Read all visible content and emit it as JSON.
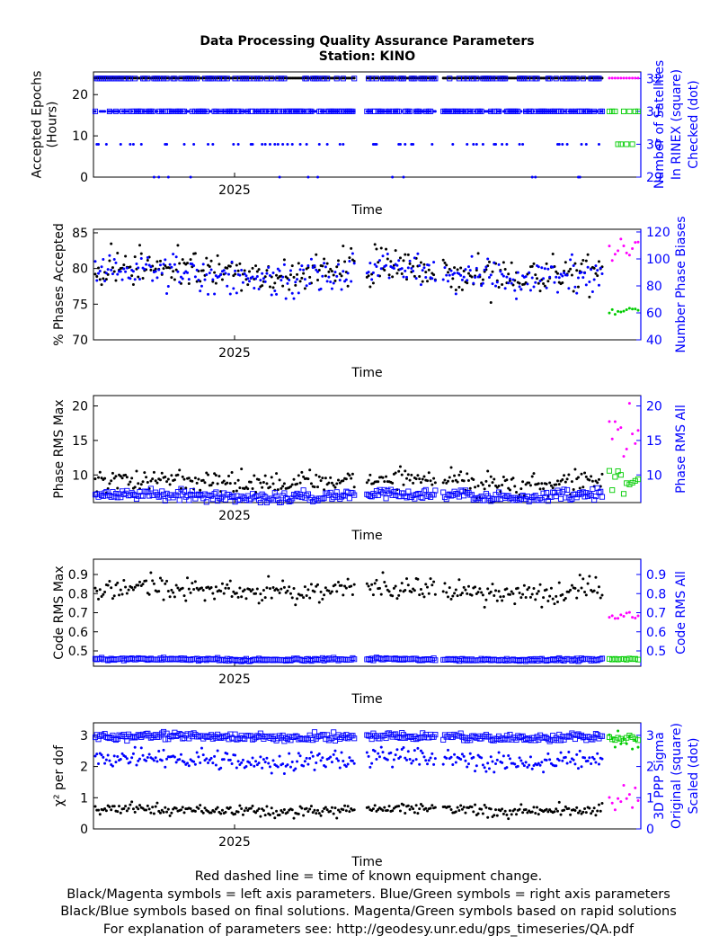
{
  "header": {
    "title_line1": "Data Processing Quality Assurance Parameters",
    "title_line2": "Station: KINO"
  },
  "footer": {
    "line1": "Red dashed line = time of known equipment change.",
    "line2": "Black/Magenta symbols = left axis parameters. Blue/Green symbols = right axis parameters",
    "line3": "Black/Blue symbols based on final solutions.  Magenta/Green symbols based on rapid solutions",
    "line4": "For explanation of parameters see: http://geodesy.unr.edu/gps_timeseries/QA.pdf"
  },
  "colors": {
    "final_left": "#000000",
    "final_right": "#0000ff",
    "rapid_left": "#ff00ff",
    "rapid_right": "#00cc00",
    "right_axis": "#0000ff"
  },
  "chart_data": [
    {
      "type": "scatter",
      "xlabel": "Time",
      "x_tick_labels": [
        "2025"
      ],
      "ylabel_left": [
        "Accepted Epochs",
        "(Hours)"
      ],
      "ylabel_right": [
        "Number of Satellites",
        "In RINEX (square)",
        "Checked (dot)"
      ],
      "ylim_left": [
        0,
        25.5
      ],
      "ylim_right": [
        29,
        32.2
      ],
      "yticks_left": [
        "0",
        "10",
        "20"
      ],
      "yticks_right": [
        "29",
        "30",
        "31",
        "32"
      ],
      "series": [
        {
          "role": "final_left",
          "marker": "dot",
          "pattern": "constant",
          "level": 24
        },
        {
          "role": "final_right",
          "marker": "square",
          "pattern": "mode",
          "levels": [
            31,
            32
          ],
          "weights": [
            0.6,
            0.4
          ]
        },
        {
          "role": "final_right",
          "marker": "dot",
          "pattern": "mode",
          "levels": [
            31,
            30,
            29
          ],
          "weights": [
            0.8,
            0.15,
            0.05
          ]
        },
        {
          "role": "rapid_left",
          "marker": "dot",
          "pattern": "constant",
          "level": 24
        },
        {
          "role": "rapid_right",
          "marker": "square",
          "pattern": "mode",
          "levels": [
            31,
            30
          ],
          "weights": [
            0.7,
            0.3
          ]
        }
      ]
    },
    {
      "type": "scatter",
      "xlabel": "Time",
      "x_tick_labels": [
        "2025"
      ],
      "ylabel_left": [
        "% Phases Accepted"
      ],
      "ylabel_right": [
        "Number Phase Biases"
      ],
      "ylim_left": [
        70,
        85.5
      ],
      "ylim_right": [
        40,
        122
      ],
      "yticks_left": [
        "70",
        "75",
        "80",
        "85"
      ],
      "yticks_right": [
        "40",
        "60",
        "80",
        "100",
        "120"
      ],
      "series": [
        {
          "role": "final_left",
          "marker": "dot",
          "mean": 79.5,
          "spread": 2.2
        },
        {
          "role": "final_right",
          "marker": "dot",
          "mean": 88,
          "spread": 11
        },
        {
          "role": "rapid_left",
          "marker": "dot",
          "mean": 83,
          "spread": 1.2
        },
        {
          "role": "rapid_right",
          "marker": "dot",
          "mean": 62,
          "spread": 3
        }
      ]
    },
    {
      "type": "scatter",
      "xlabel": "Time",
      "x_tick_labels": [
        "2025"
      ],
      "ylabel_left": [
        "Phase RMS Max"
      ],
      "ylabel_right": [
        "Phase RMS All"
      ],
      "ylim_left": [
        6,
        21.5
      ],
      "ylim_right": [
        6,
        21.5
      ],
      "yticks_left": [
        "10",
        "15",
        "20"
      ],
      "yticks_right": [
        "10",
        "15",
        "20"
      ],
      "series": [
        {
          "role": "final_left",
          "marker": "dot",
          "mean": 9,
          "spread": 1.3
        },
        {
          "role": "final_right",
          "marker": "square",
          "mean": 7,
          "spread": 0.7
        },
        {
          "role": "rapid_left",
          "marker": "dot",
          "mean": 16,
          "spread": 3
        },
        {
          "role": "rapid_right",
          "marker": "square",
          "mean": 9,
          "spread": 1.5
        }
      ]
    },
    {
      "type": "scatter",
      "xlabel": "Time",
      "x_tick_labels": [
        "2025"
      ],
      "ylabel_left": [
        "Code RMS Max"
      ],
      "ylabel_right": [
        "Code RMS All"
      ],
      "ylim_left": [
        0.42,
        0.98
      ],
      "ylim_right": [
        0.42,
        0.98
      ],
      "yticks_left": [
        "0.5",
        "0.6",
        "0.7",
        "0.8",
        "0.9"
      ],
      "yticks_right": [
        "0.5",
        "0.6",
        "0.7",
        "0.8",
        "0.9"
      ],
      "series": [
        {
          "role": "final_left",
          "marker": "dot",
          "mean": 0.82,
          "spread": 0.05
        },
        {
          "role": "final_right",
          "marker": "square",
          "mean": 0.455,
          "spread": 0.006
        },
        {
          "role": "rapid_left",
          "marker": "dot",
          "mean": 0.68,
          "spread": 0.02
        },
        {
          "role": "rapid_right",
          "marker": "square",
          "mean": 0.455,
          "spread": 0.005
        }
      ]
    },
    {
      "type": "scatter",
      "xlabel": "Time",
      "x_tick_labels": [
        "2025"
      ],
      "ylabel_left": [
        "χ² per dof"
      ],
      "ylabel_right": [
        "3D PPP Sigma",
        "Original (square)",
        "Scaled (dot)"
      ],
      "ylim_left": [
        0,
        3.4
      ],
      "ylim_right": [
        0,
        3.4
      ],
      "yticks_left": [
        "0",
        "1",
        "2",
        "3"
      ],
      "yticks_right": [
        "0",
        "1",
        "2",
        "3"
      ],
      "series": [
        {
          "role": "final_left",
          "marker": "dot",
          "mean": 0.6,
          "spread": 0.15
        },
        {
          "role": "final_right",
          "marker": "square",
          "mean": 2.95,
          "spread": 0.1
        },
        {
          "role": "final_right",
          "marker": "dot",
          "mean": 2.2,
          "spread": 0.25
        },
        {
          "role": "rapid_left",
          "marker": "dot",
          "mean": 1.0,
          "spread": 0.3
        },
        {
          "role": "rapid_right",
          "marker": "square",
          "mean": 2.9,
          "spread": 0.1
        },
        {
          "role": "rapid_right",
          "marker": "dot",
          "mean": 2.8,
          "spread": 0.3
        }
      ]
    }
  ]
}
